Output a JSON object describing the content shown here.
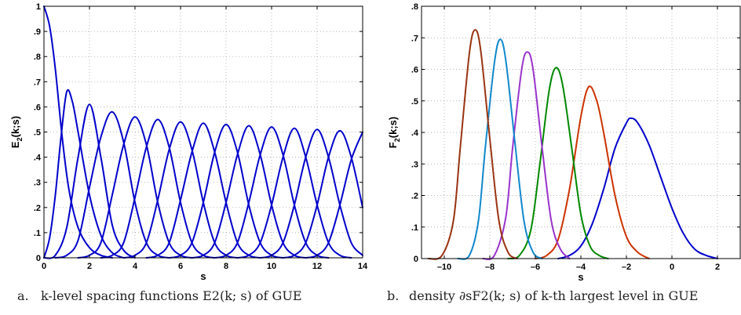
{
  "chart_data": [
    {
      "type": "line",
      "panel_label": "a.",
      "caption": "k-level spacing functions E2(k; s) of GUE",
      "xlabel": "s",
      "ylabel": "E2(k;s)",
      "xlim": [
        0,
        14
      ],
      "ylim": [
        0,
        1
      ],
      "xticks": [
        0,
        2,
        4,
        6,
        8,
        10,
        12,
        14
      ],
      "yticks": [
        0,
        0.1,
        0.2,
        0.3,
        0.4,
        0.5,
        0.6,
        0.7,
        0.8,
        0.9,
        1
      ],
      "grid": true,
      "color": "#0000cc",
      "series": [
        {
          "values": [
            [
              0,
              1
            ],
            [
              0.25,
              0.92
            ],
            [
              0.5,
              0.75
            ],
            [
              0.8,
              0.48
            ],
            [
              1.1,
              0.27
            ],
            [
              1.5,
              0.12
            ],
            [
              2,
              0.04
            ],
            [
              2.5,
              0.01
            ],
            [
              3,
              0
            ]
          ]
        },
        {
          "values": [
            [
              0,
              0
            ],
            [
              0.25,
              0.08
            ],
            [
              0.5,
              0.25
            ],
            [
              0.75,
              0.48
            ],
            [
              1,
              0.66
            ],
            [
              1.25,
              0.62
            ],
            [
              1.5,
              0.5
            ],
            [
              2,
              0.25
            ],
            [
              2.5,
              0.09
            ],
            [
              3,
              0.02
            ],
            [
              3.5,
              0
            ]
          ]
        },
        {
          "values": [
            [
              0,
              0
            ],
            [
              0.5,
              0.01
            ],
            [
              1,
              0.12
            ],
            [
              1.5,
              0.4
            ],
            [
              2,
              0.61
            ],
            [
              2.5,
              0.4
            ],
            [
              3,
              0.13
            ],
            [
              3.5,
              0.03
            ],
            [
              4,
              0
            ]
          ]
        },
        {
          "values": [
            [
              0.5,
              0
            ],
            [
              1,
              0.01
            ],
            [
              1.5,
              0.07
            ],
            [
              2,
              0.28
            ],
            [
              2.5,
              0.48
            ],
            [
              3,
              0.58
            ],
            [
              3.5,
              0.46
            ],
            [
              4,
              0.22
            ],
            [
              4.5,
              0.06
            ],
            [
              5,
              0.01
            ],
            [
              5.5,
              0
            ]
          ]
        },
        {
          "values": [
            [
              1.5,
              0
            ],
            [
              2,
              0.01
            ],
            [
              2.5,
              0.06
            ],
            [
              3,
              0.25
            ],
            [
              3.5,
              0.45
            ],
            [
              4,
              0.56
            ],
            [
              4.5,
              0.45
            ],
            [
              5,
              0.22
            ],
            [
              5.5,
              0.06
            ],
            [
              6,
              0.01
            ],
            [
              6.5,
              0
            ]
          ]
        },
        {
          "values": [
            [
              2.5,
              0
            ],
            [
              3,
              0.01
            ],
            [
              3.5,
              0.06
            ],
            [
              4,
              0.24
            ],
            [
              4.5,
              0.44
            ],
            [
              5,
              0.55
            ],
            [
              5.5,
              0.44
            ],
            [
              6,
              0.22
            ],
            [
              6.5,
              0.06
            ],
            [
              7,
              0.01
            ],
            [
              7.5,
              0
            ]
          ]
        },
        {
          "values": [
            [
              3.5,
              0
            ],
            [
              4,
              0.01
            ],
            [
              4.5,
              0.06
            ],
            [
              5,
              0.23
            ],
            [
              5.5,
              0.43
            ],
            [
              6,
              0.54
            ],
            [
              6.5,
              0.43
            ],
            [
              7,
              0.22
            ],
            [
              7.5,
              0.06
            ],
            [
              8,
              0.01
            ],
            [
              8.5,
              0
            ]
          ]
        },
        {
          "values": [
            [
              4.5,
              0
            ],
            [
              5,
              0.01
            ],
            [
              5.5,
              0.06
            ],
            [
              6,
              0.23
            ],
            [
              6.5,
              0.42
            ],
            [
              7,
              0.535
            ],
            [
              7.5,
              0.42
            ],
            [
              8,
              0.22
            ],
            [
              8.5,
              0.06
            ],
            [
              9,
              0.01
            ],
            [
              9.5,
              0
            ]
          ]
        },
        {
          "values": [
            [
              5.5,
              0
            ],
            [
              6,
              0.01
            ],
            [
              6.5,
              0.06
            ],
            [
              7,
              0.22
            ],
            [
              7.5,
              0.42
            ],
            [
              8,
              0.53
            ],
            [
              8.5,
              0.42
            ],
            [
              9,
              0.21
            ],
            [
              9.5,
              0.06
            ],
            [
              10,
              0.01
            ],
            [
              10.5,
              0
            ]
          ]
        },
        {
          "values": [
            [
              6.5,
              0
            ],
            [
              7,
              0.01
            ],
            [
              7.5,
              0.06
            ],
            [
              8,
              0.22
            ],
            [
              8.5,
              0.41
            ],
            [
              9,
              0.525
            ],
            [
              9.5,
              0.41
            ],
            [
              10,
              0.21
            ],
            [
              10.5,
              0.06
            ],
            [
              11,
              0.01
            ],
            [
              11.5,
              0
            ]
          ]
        },
        {
          "values": [
            [
              7.5,
              0
            ],
            [
              8,
              0.01
            ],
            [
              8.5,
              0.06
            ],
            [
              9,
              0.22
            ],
            [
              9.5,
              0.41
            ],
            [
              10,
              0.52
            ],
            [
              10.5,
              0.41
            ],
            [
              11,
              0.21
            ],
            [
              11.5,
              0.06
            ],
            [
              12,
              0.01
            ],
            [
              12.5,
              0
            ]
          ]
        },
        {
          "values": [
            [
              8.5,
              0
            ],
            [
              9,
              0.01
            ],
            [
              9.5,
              0.06
            ],
            [
              10,
              0.21
            ],
            [
              10.5,
              0.4
            ],
            [
              11,
              0.515
            ],
            [
              11.5,
              0.4
            ],
            [
              12,
              0.21
            ],
            [
              12.5,
              0.06
            ],
            [
              13,
              0.01
            ],
            [
              13.5,
              0
            ]
          ]
        },
        {
          "values": [
            [
              9.5,
              0
            ],
            [
              10,
              0.01
            ],
            [
              10.5,
              0.06
            ],
            [
              11,
              0.21
            ],
            [
              11.5,
              0.4
            ],
            [
              12,
              0.51
            ],
            [
              12.5,
              0.4
            ],
            [
              13,
              0.21
            ],
            [
              13.5,
              0.06
            ],
            [
              14,
              0.01
            ]
          ]
        },
        {
          "values": [
            [
              10.5,
              0
            ],
            [
              11,
              0.01
            ],
            [
              11.5,
              0.06
            ],
            [
              12,
              0.21
            ],
            [
              12.5,
              0.4
            ],
            [
              13,
              0.505
            ],
            [
              13.5,
              0.4
            ],
            [
              14,
              0.2
            ]
          ]
        },
        {
          "values": [
            [
              11.5,
              0
            ],
            [
              12,
              0.01
            ],
            [
              12.5,
              0.06
            ],
            [
              13,
              0.21
            ],
            [
              13.5,
              0.39
            ],
            [
              14,
              0.5
            ]
          ]
        }
      ]
    },
    {
      "type": "line",
      "panel_label": "b.",
      "caption": "density ∂sF2(k; s) of k-th largest level in GUE",
      "xlabel": "s",
      "ylabel": "F2(k;s)",
      "xlim": [
        -11,
        3
      ],
      "ylim": [
        0,
        0.8
      ],
      "xticks": [
        -10,
        -8,
        -6,
        -4,
        -2,
        0,
        2
      ],
      "yticks": [
        0,
        0.1,
        0.2,
        0.3,
        0.4,
        0.5,
        0.6,
        0.7,
        0.8
      ],
      "grid": true,
      "series": [
        {
          "color": "#0000cc",
          "peak_x": -1.8,
          "peak_y": 0.445,
          "values": [
            [
              -5,
              0
            ],
            [
              -4.5,
              0.01
            ],
            [
              -4,
              0.04
            ],
            [
              -3.5,
              0.11
            ],
            [
              -3,
              0.22
            ],
            [
              -2.5,
              0.35
            ],
            [
              -2,
              0.43
            ],
            [
              -1.8,
              0.445
            ],
            [
              -1.5,
              0.43
            ],
            [
              -1,
              0.36
            ],
            [
              -0.5,
              0.26
            ],
            [
              0,
              0.16
            ],
            [
              0.5,
              0.08
            ],
            [
              1,
              0.03
            ],
            [
              1.5,
              0.01
            ],
            [
              2,
              0
            ]
          ]
        },
        {
          "color": "#cc3300",
          "peak_x": -3.65,
          "peak_y": 0.545,
          "values": [
            [
              -6,
              0
            ],
            [
              -5.5,
              0.01
            ],
            [
              -5,
              0.06
            ],
            [
              -4.5,
              0.22
            ],
            [
              -4,
              0.45
            ],
            [
              -3.65,
              0.545
            ],
            [
              -3.3,
              0.5
            ],
            [
              -3,
              0.4
            ],
            [
              -2.5,
              0.2
            ],
            [
              -2,
              0.07
            ],
            [
              -1.5,
              0.02
            ],
            [
              -1,
              0
            ]
          ]
        },
        {
          "color": "#008800",
          "peak_x": -5.1,
          "peak_y": 0.605,
          "values": [
            [
              -7.2,
              0
            ],
            [
              -6.7,
              0.01
            ],
            [
              -6.2,
              0.09
            ],
            [
              -5.8,
              0.3
            ],
            [
              -5.4,
              0.53
            ],
            [
              -5.1,
              0.605
            ],
            [
              -4.8,
              0.55
            ],
            [
              -4.4,
              0.35
            ],
            [
              -4,
              0.14
            ],
            [
              -3.6,
              0.04
            ],
            [
              -3.2,
              0.01
            ],
            [
              -2.8,
              0
            ]
          ]
        },
        {
          "color": "#9933cc",
          "peak_x": -6.35,
          "peak_y": 0.655,
          "values": [
            [
              -8.3,
              0
            ],
            [
              -7.8,
              0.01
            ],
            [
              -7.3,
              0.13
            ],
            [
              -7,
              0.35
            ],
            [
              -6.6,
              0.6
            ],
            [
              -6.35,
              0.655
            ],
            [
              -6.1,
              0.6
            ],
            [
              -5.7,
              0.35
            ],
            [
              -5.3,
              0.12
            ],
            [
              -4.9,
              0.03
            ],
            [
              -4.5,
              0
            ]
          ]
        },
        {
          "color": "#1188cc",
          "peak_x": -7.55,
          "peak_y": 0.695,
          "values": [
            [
              -9.4,
              0
            ],
            [
              -8.9,
              0.01
            ],
            [
              -8.5,
              0.12
            ],
            [
              -8.2,
              0.35
            ],
            [
              -7.8,
              0.62
            ],
            [
              -7.55,
              0.695
            ],
            [
              -7.3,
              0.63
            ],
            [
              -6.9,
              0.37
            ],
            [
              -6.5,
              0.12
            ],
            [
              -6.1,
              0.02
            ],
            [
              -5.7,
              0
            ]
          ]
        },
        {
          "color": "#993311",
          "peak_x": -8.65,
          "peak_y": 0.725,
          "values": [
            [
              -10.7,
              0
            ],
            [
              -10.1,
              0.01
            ],
            [
              -9.6,
              0.12
            ],
            [
              -9.3,
              0.35
            ],
            [
              -8.9,
              0.65
            ],
            [
              -8.65,
              0.725
            ],
            [
              -8.4,
              0.66
            ],
            [
              -8,
              0.38
            ],
            [
              -7.6,
              0.12
            ],
            [
              -7.2,
              0.02
            ],
            [
              -6.8,
              0
            ]
          ]
        }
      ]
    }
  ]
}
